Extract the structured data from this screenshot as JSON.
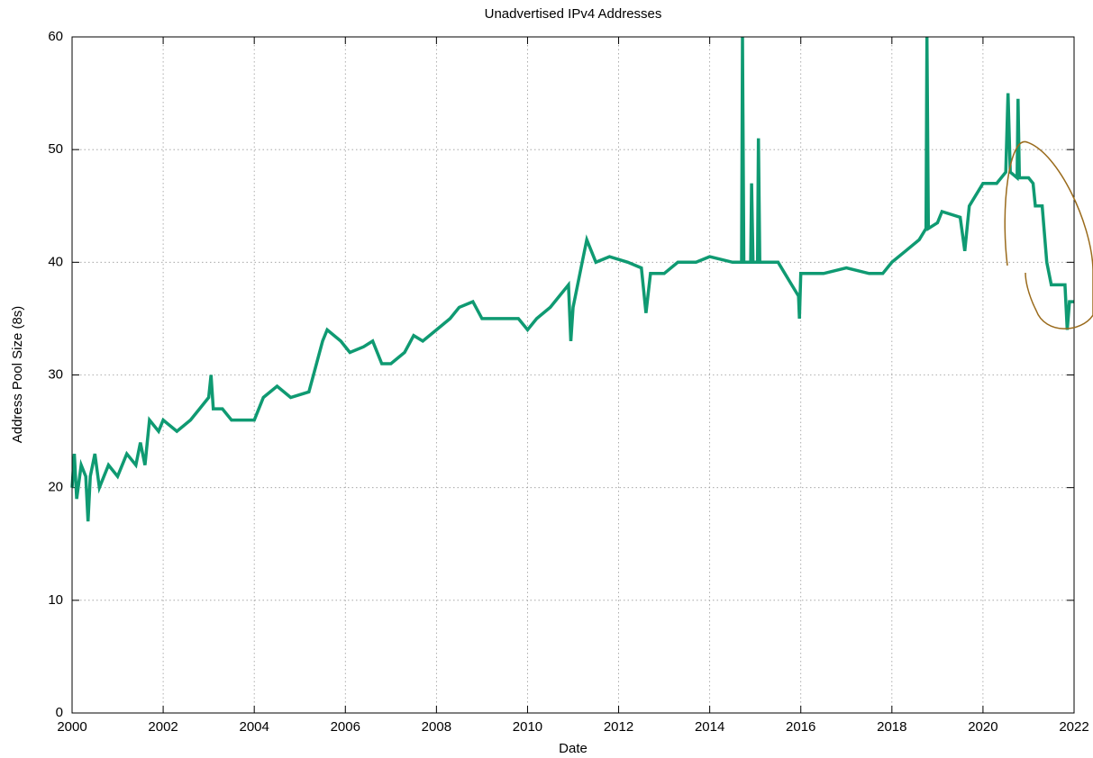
{
  "chart_data": {
    "type": "line",
    "title": "Unadvertised IPv4 Addresses",
    "x_label": "Date",
    "y_label": "Address Pool Size (8s)",
    "xlim": [
      2000,
      2022
    ],
    "xticks": [
      2000,
      2002,
      2004,
      2006,
      2008,
      2010,
      2012,
      2014,
      2016,
      2018,
      2020,
      2022
    ],
    "ylim": [
      0,
      60
    ],
    "yticks": [
      0,
      10,
      20,
      30,
      40,
      50,
      60
    ],
    "grid": true,
    "color": "#0f9a72",
    "x": [
      2000.0,
      2000.05,
      2000.1,
      2000.2,
      2000.3,
      2000.35,
      2000.4,
      2000.5,
      2000.6,
      2000.8,
      2001.0,
      2001.2,
      2001.4,
      2001.5,
      2001.6,
      2001.7,
      2001.9,
      2002.0,
      2002.3,
      2002.6,
      2002.8,
      2003.0,
      2003.05,
      2003.1,
      2003.3,
      2003.5,
      2003.8,
      2004.0,
      2004.2,
      2004.5,
      2004.8,
      2005.2,
      2005.3,
      2005.5,
      2005.6,
      2005.9,
      2006.1,
      2006.4,
      2006.6,
      2006.8,
      2007.0,
      2007.3,
      2007.5,
      2007.7,
      2008.0,
      2008.3,
      2008.5,
      2008.8,
      2009.0,
      2009.5,
      2009.8,
      2010.0,
      2010.2,
      2010.5,
      2010.7,
      2010.9,
      2010.95,
      2011.0,
      2011.2,
      2011.3,
      2011.5,
      2011.8,
      2012.2,
      2012.5,
      2012.6,
      2012.7,
      2013.0,
      2013.3,
      2013.7,
      2014.0,
      2014.5,
      2014.7,
      2014.72,
      2014.75,
      2014.9,
      2014.92,
      2014.95,
      2015.05,
      2015.07,
      2015.1,
      2015.5,
      2015.8,
      2015.95,
      2015.97,
      2016.0,
      2016.5,
      2017.0,
      2017.5,
      2017.8,
      2018.0,
      2018.3,
      2018.6,
      2018.75,
      2018.77,
      2018.8,
      2019.0,
      2019.1,
      2019.5,
      2019.6,
      2019.7,
      2020.0,
      2020.3,
      2020.5,
      2020.55,
      2020.6,
      2020.75,
      2020.77,
      2020.8,
      2021.0,
      2021.1,
      2021.15,
      2021.3,
      2021.4,
      2021.5,
      2021.8,
      2021.85,
      2021.9,
      2022.0
    ],
    "values": [
      20,
      23,
      19,
      22,
      21,
      17,
      21,
      23,
      20,
      22,
      21,
      23,
      22,
      24,
      22,
      26,
      25,
      26,
      25,
      26,
      27,
      28,
      30,
      27,
      27,
      26,
      26,
      26,
      28,
      29,
      28,
      28.5,
      30,
      33,
      34,
      33,
      32,
      32.5,
      33,
      31,
      31,
      32,
      33.5,
      33,
      34,
      35,
      36,
      36.5,
      35,
      35,
      35,
      34,
      35,
      36,
      37,
      38,
      33,
      36,
      40,
      42,
      40,
      40.5,
      40,
      39.5,
      35.5,
      39,
      39,
      40,
      40,
      40.5,
      40,
      40,
      60,
      40,
      40,
      47,
      40,
      40,
      51,
      40,
      40,
      38,
      37,
      35,
      39,
      39,
      39.5,
      39,
      39,
      40,
      41,
      42,
      43,
      60,
      43,
      43.5,
      44.5,
      44,
      41,
      45,
      47,
      47,
      48,
      55,
      48,
      47.5,
      54.5,
      47.5,
      47.5,
      47,
      45,
      45,
      40,
      38,
      38,
      34,
      36.5,
      36.5
    ]
  }
}
